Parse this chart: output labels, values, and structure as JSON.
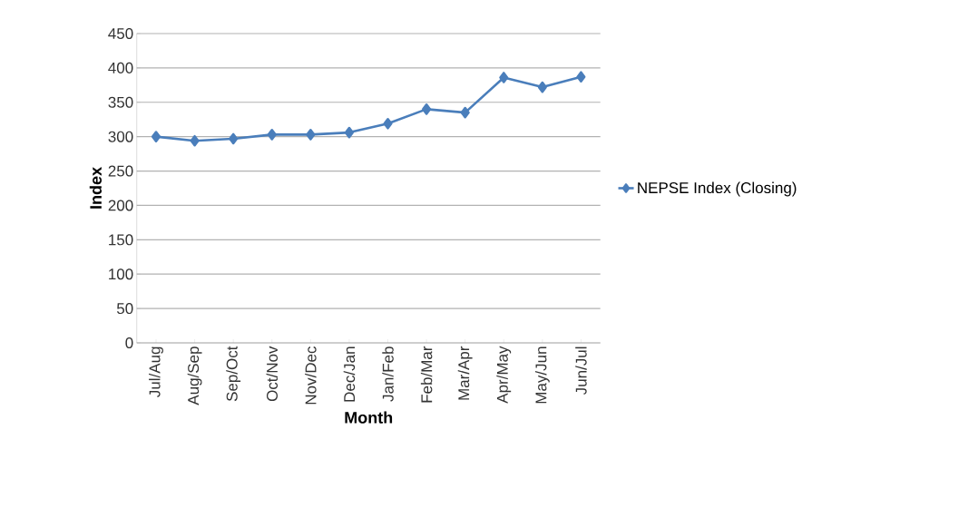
{
  "chart_data": {
    "type": "line",
    "xlabel": "Month",
    "ylabel": "Index",
    "categories": [
      "Jul/Aug",
      "Aug/Sep",
      "Sep/Oct",
      "Oct/Nov",
      "Nov/Dec",
      "Dec/Jan",
      "Jan/Feb",
      "Feb/Mar",
      "Mar/Apr",
      "Apr/May",
      "May/Jun",
      "Jun/Jul"
    ],
    "series": [
      {
        "name": "NEPSE Index (Closing)",
        "color": "#4a7ebb",
        "values": [
          300,
          294,
          297,
          303,
          303,
          306,
          319,
          340,
          335,
          386,
          372,
          387
        ]
      }
    ],
    "ylim": [
      0,
      450
    ],
    "yticks": [
      0,
      50,
      100,
      150,
      200,
      250,
      300,
      350,
      400,
      450
    ],
    "grid": "y",
    "legend": "right",
    "marker": "diamond",
    "line_style": "solid"
  }
}
